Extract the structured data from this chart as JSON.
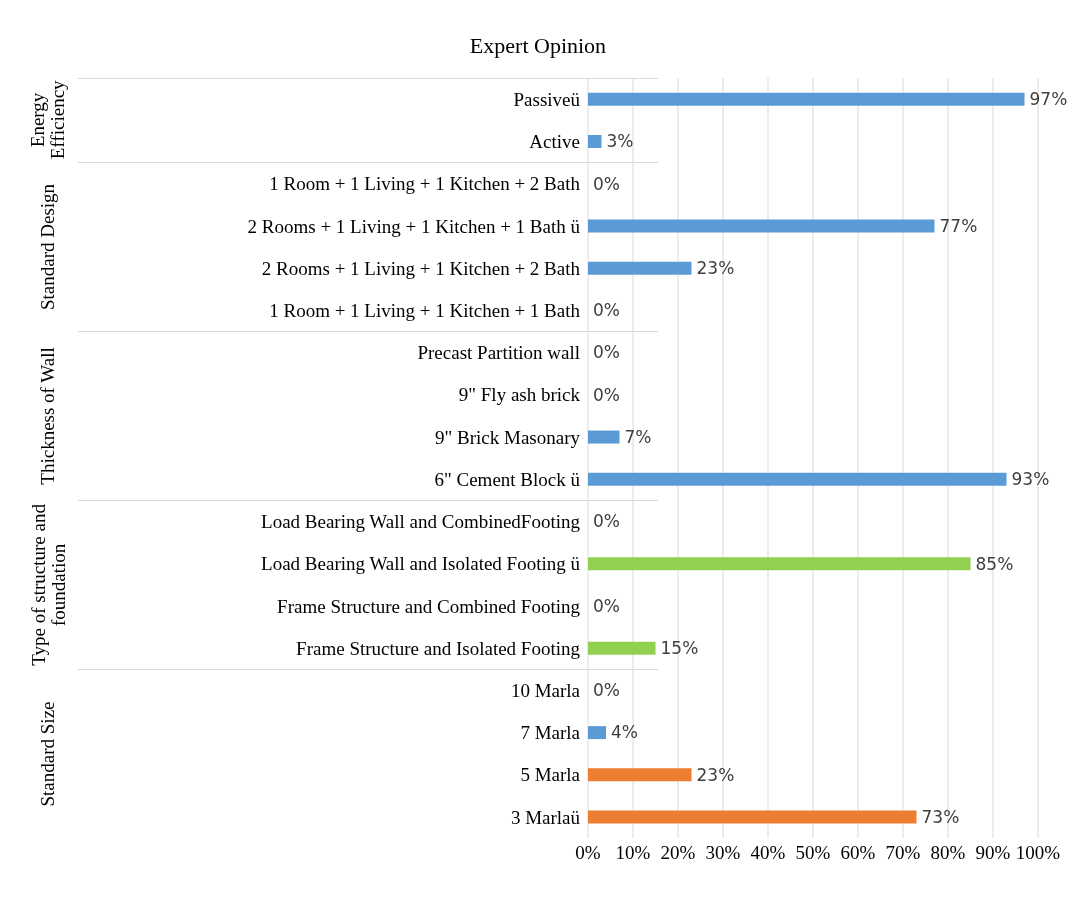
{
  "chart_data": {
    "type": "bar",
    "orientation": "horizontal",
    "title": "Expert Opinion",
    "categories": [
      "Passiveü",
      "Active",
      "1 Room + 1 Living + 1 Kitchen + 2 Bath",
      "2 Rooms + 1 Living + 1 Kitchen + 1 Bath ü",
      "2 Rooms + 1 Living + 1 Kitchen + 2 Bath",
      "1 Room + 1 Living + 1 Kitchen + 1 Bath",
      "Precast Partition wall",
      "9\" Fly ash brick",
      "9\" Brick Masonary",
      "6\" Cement Block ü",
      "Load Bearing Wall and CombinedFooting",
      "Load Bearing Wall and Isolated Footing ü",
      "Frame Structure and Combined Footing",
      "Frame Structure and Isolated Footing",
      "10 Marla",
      "7 Marla",
      "5 Marla",
      "3 Marlaü"
    ],
    "values": [
      97,
      3,
      0,
      77,
      23,
      0,
      0,
      0,
      7,
      93,
      0,
      85,
      0,
      15,
      0,
      4,
      23,
      73
    ],
    "value_labels": [
      "97%",
      "3%",
      "0%",
      "77%",
      "23%",
      "0%",
      "0%",
      "0%",
      "7%",
      "93%",
      "0%",
      "85%",
      "0%",
      "15%",
      "0%",
      "4%",
      "23%",
      "73%"
    ],
    "colors": [
      "#5b9bd5",
      "#5b9bd5",
      "#5b9bd5",
      "#5b9bd5",
      "#5b9bd5",
      "#5b9bd5",
      "#5b9bd5",
      "#5b9bd5",
      "#5b9bd5",
      "#5b9bd5",
      "#92d050",
      "#92d050",
      "#92d050",
      "#92d050",
      "#5b9bd5",
      "#5b9bd5",
      "#ed7d31",
      "#ed7d31"
    ],
    "xlim": [
      0,
      100
    ],
    "xticks": [
      {
        "value": 0,
        "label": "0%"
      },
      {
        "value": 10,
        "label": "10%"
      },
      {
        "value": 20,
        "label": "20%"
      },
      {
        "value": 30,
        "label": "30%"
      },
      {
        "value": 40,
        "label": "40%"
      },
      {
        "value": 50,
        "label": "50%"
      },
      {
        "value": 60,
        "label": "60%"
      },
      {
        "value": 70,
        "label": "70%"
      },
      {
        "value": 80,
        "label": "80%"
      },
      {
        "value": 90,
        "label": "90%"
      },
      {
        "value": 100,
        "label": "100%"
      }
    ],
    "grid": "x",
    "annotations": [
      "Energy Efficiency",
      "Standard Design",
      "Thickness of Wall",
      "Type of structure and foundation",
      "Standard Size"
    ]
  }
}
